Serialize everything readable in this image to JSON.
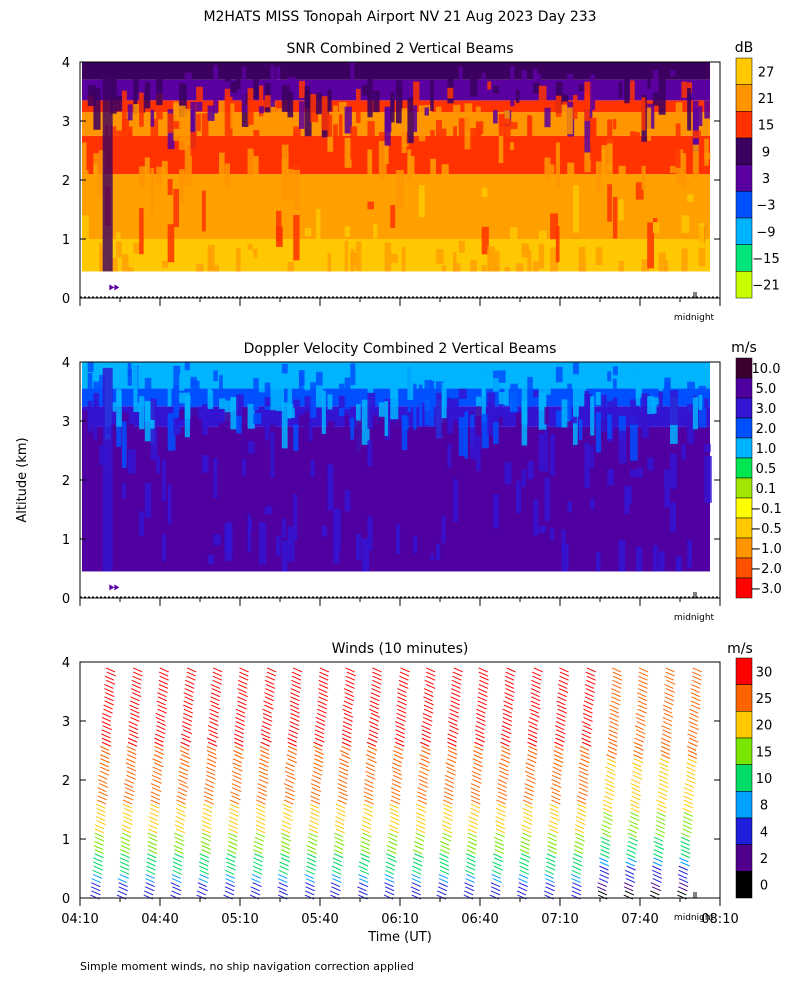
{
  "page": {
    "title": "M2HATS MISS Tonopah Airport NV  21 Aug 2023 Day 233",
    "ylabel": "Altitude (km)",
    "xlabel": "Time (UT)",
    "footnote": "Simple moment winds, no ship navigation correction applied",
    "midnight_label": "midnight"
  },
  "time_axis": {
    "start": "04:10",
    "end": "08:10",
    "tick_labels": [
      "04:10",
      "04:40",
      "05:10",
      "05:40",
      "06:10",
      "06:40",
      "07:10",
      "07:40",
      "08:10"
    ],
    "minor_ticks": [
      "04:10",
      "04:25",
      "04:40",
      "04:55",
      "05:10",
      "05:25",
      "05:40",
      "05:55",
      "06:10",
      "06:25",
      "06:40",
      "06:55",
      "07:10",
      "07:25",
      "07:40",
      "07:55",
      "08:10"
    ]
  },
  "chart_data": [
    {
      "type": "heatmap",
      "title": "SNR Combined 2 Vertical Beams",
      "units": "dB",
      "xlabel": "",
      "ylabel": "Altitude (km)",
      "ylim": [
        0,
        4
      ],
      "y_ticks": [
        0,
        1,
        2,
        3,
        4
      ],
      "colorbar": {
        "ticks": [
          "27",
          "21",
          "15",
          "9",
          "3",
          "−3",
          "−9",
          "−15",
          "−21"
        ],
        "colors": [
          "#ffc800",
          "#ff9600",
          "#ff3200",
          "#3c0060",
          "#5a00a0",
          "#0050ff",
          "#00b4ff",
          "#00e678",
          "#c8ff00"
        ]
      },
      "bands": [
        {
          "from_km": 0.45,
          "to_km": 1.0,
          "color": "#ffc800"
        },
        {
          "from_km": 1.0,
          "to_km": 2.1,
          "color": "#ffa000"
        },
        {
          "from_km": 2.1,
          "to_km": 2.75,
          "color": "#ff3200"
        },
        {
          "from_km": 2.75,
          "to_km": 3.15,
          "color": "#ff9600"
        },
        {
          "from_km": 3.15,
          "to_km": 3.35,
          "color": "#ff3200"
        },
        {
          "from_km": 3.35,
          "to_km": 3.7,
          "color": "#5a00a0"
        },
        {
          "from_km": 3.7,
          "to_km": 4.0,
          "color": "#3c0060"
        }
      ]
    },
    {
      "type": "heatmap",
      "title": "Doppler Velocity Combined 2 Vertical Beams",
      "units": "m/s",
      "xlabel": "",
      "ylabel": "Altitude (km)",
      "ylim": [
        0,
        4
      ],
      "y_ticks": [
        0,
        1,
        2,
        3,
        4
      ],
      "colorbar": {
        "ticks": [
          "10.0",
          "5.0",
          "3.0",
          "2.0",
          "1.0",
          "0.5",
          "0.1",
          "−0.1",
          "−0.5",
          "−1.0",
          "−2.0",
          "−3.0"
        ],
        "colors": [
          "#3c0030",
          "#5000a0",
          "#3214d2",
          "#0050ff",
          "#00b4ff",
          "#00e650",
          "#a0e600",
          "#ffff00",
          "#ffc800",
          "#ff9600",
          "#ff5000",
          "#ff0000"
        ]
      },
      "bands": [
        {
          "from_km": 0.45,
          "to_km": 2.9,
          "color": "#5000a0"
        },
        {
          "from_km": 2.9,
          "to_km": 3.25,
          "color": "#3214d2"
        },
        {
          "from_km": 3.25,
          "to_km": 3.55,
          "color": "#0050ff"
        },
        {
          "from_km": 3.55,
          "to_km": 4.0,
          "color": "#00b4ff"
        }
      ]
    },
    {
      "type": "scatter",
      "title": "Winds (10 minutes)",
      "units": "m/s",
      "xlabel": "Time (UT)",
      "ylabel": "Altitude (km)",
      "ylim": [
        0,
        4
      ],
      "y_ticks": [
        0,
        1,
        2,
        3,
        4
      ],
      "colorbar": {
        "ticks": [
          "30",
          "25",
          "20",
          "15",
          "10",
          "8",
          "4",
          "2",
          "0"
        ],
        "colors": [
          "#ff0000",
          "#ff6400",
          "#ffc800",
          "#78e600",
          "#00dc64",
          "#00a0ff",
          "#1e1edc",
          "#50008c",
          "#000000"
        ]
      },
      "profile_times": [
        "04:20",
        "04:30",
        "04:40",
        "04:50",
        "05:00",
        "05:10",
        "05:20",
        "05:30",
        "05:40",
        "05:50",
        "06:00",
        "06:10",
        "06:20",
        "06:30",
        "06:40",
        "06:50",
        "07:00",
        "07:10",
        "07:20",
        "07:30",
        "07:40",
        "07:50",
        "08:00"
      ],
      "speed_profile_mps": [
        {
          "alt_km": 0.1,
          "speed": 5
        },
        {
          "alt_km": 0.4,
          "speed": 9
        },
        {
          "alt_km": 0.8,
          "speed": 15
        },
        {
          "alt_km": 1.2,
          "speed": 21
        },
        {
          "alt_km": 1.6,
          "speed": 25
        },
        {
          "alt_km": 2.2,
          "speed": 28
        },
        {
          "alt_km": 2.8,
          "speed": 31
        },
        {
          "alt_km": 4.0,
          "speed": 32
        }
      ]
    }
  ]
}
